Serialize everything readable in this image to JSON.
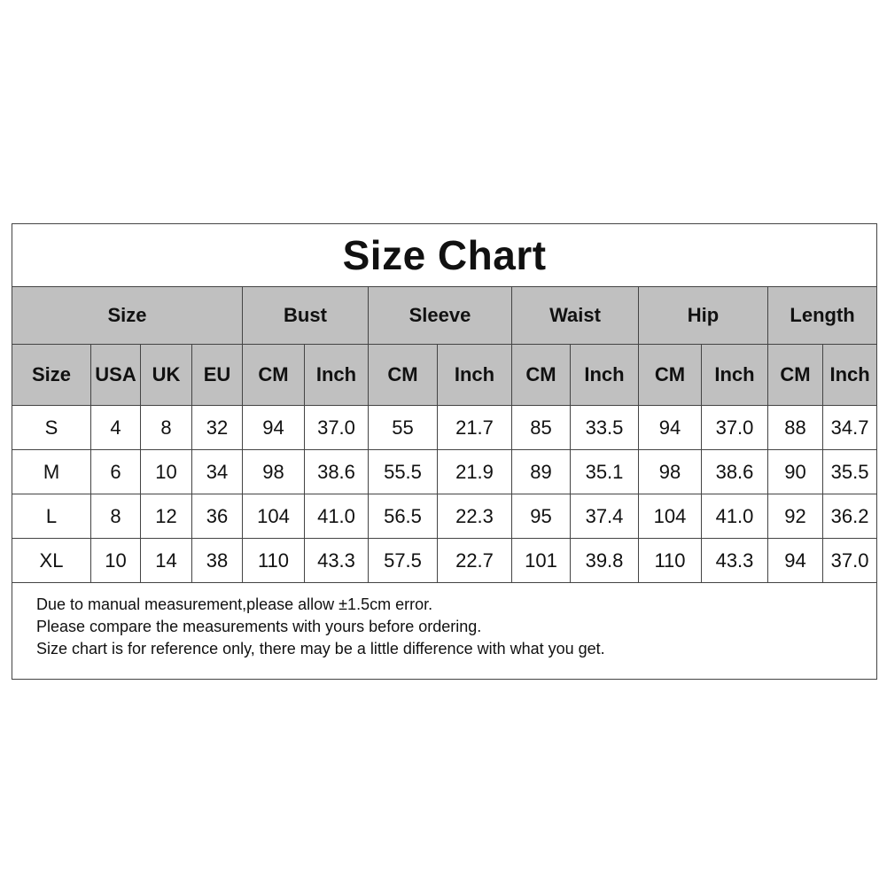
{
  "title": "Size Chart",
  "group_headers": [
    "Size",
    "Bust",
    "Sleeve",
    "Waist",
    "Hip",
    "Length"
  ],
  "sub_headers": [
    "Size",
    "USA",
    "UK",
    "EU",
    "CM",
    "Inch",
    "CM",
    "Inch",
    "CM",
    "Inch",
    "CM",
    "Inch",
    "CM",
    "Inch"
  ],
  "rows": [
    [
      "S",
      "4",
      "8",
      "32",
      "94",
      "37.0",
      "55",
      "21.7",
      "85",
      "33.5",
      "94",
      "37.0",
      "88",
      "34.7"
    ],
    [
      "M",
      "6",
      "10",
      "34",
      "98",
      "38.6",
      "55.5",
      "21.9",
      "89",
      "35.1",
      "98",
      "38.6",
      "90",
      "35.5"
    ],
    [
      "L",
      "8",
      "12",
      "36",
      "104",
      "41.0",
      "56.5",
      "22.3",
      "95",
      "37.4",
      "104",
      "41.0",
      "92",
      "36.2"
    ],
    [
      "XL",
      "10",
      "14",
      "38",
      "110",
      "43.3",
      "57.5",
      "22.7",
      "101",
      "39.8",
      "110",
      "43.3",
      "94",
      "37.0"
    ]
  ],
  "notes": [
    "Due to manual measurement,please allow ±1.5cm error.",
    "Please compare the measurements with yours before ordering.",
    "Size chart is for reference only,  there may be a little difference with what you get."
  ],
  "colors": {
    "header_bg": "#c0c0c0",
    "border": "#444444"
  }
}
